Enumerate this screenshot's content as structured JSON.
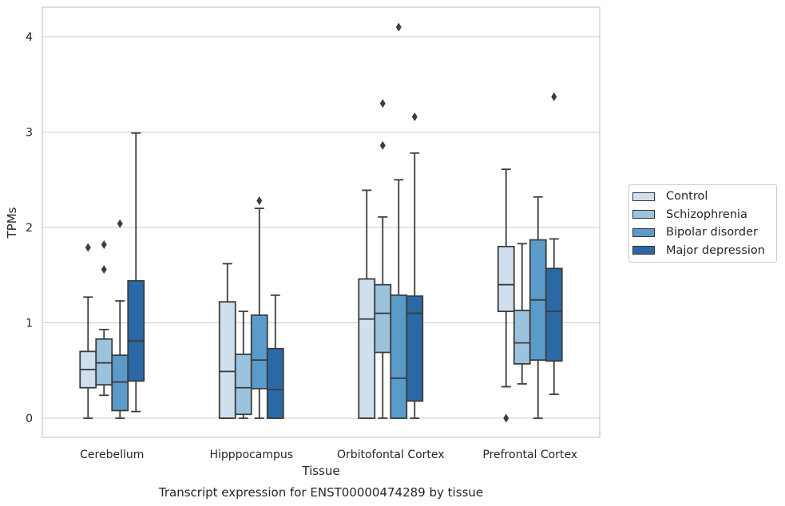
{
  "chart_data": {
    "type": "box",
    "title": "",
    "caption": "Transcript expression for ENST00000474289 by tissue",
    "xlabel": "Tissue",
    "ylabel": "TPMs",
    "ylim": [
      -0.2,
      4.3
    ],
    "yticks": [
      0,
      1,
      2,
      3,
      4
    ],
    "grid": "horizontal",
    "legend_placement": "right",
    "categories": [
      "Cerebellum",
      "Hipppocampus",
      "Orbitofontal Cortex",
      "Prefrontal Cortex"
    ],
    "series": [
      {
        "name": "Control",
        "color": "#d0dfee",
        "boxes": [
          {
            "whisker_low": 0.0,
            "q1": 0.32,
            "median": 0.51,
            "q3": 0.7,
            "whisker_high": 1.27,
            "outliers": [
              1.79
            ]
          },
          {
            "whisker_low": 0.0,
            "q1": 0.0,
            "median": 0.49,
            "q3": 1.22,
            "whisker_high": 1.62,
            "outliers": []
          },
          {
            "whisker_low": 0.0,
            "q1": 0.0,
            "median": 1.04,
            "q3": 1.46,
            "whisker_high": 2.39,
            "outliers": []
          },
          {
            "whisker_low": 0.33,
            "q1": 1.12,
            "median": 1.4,
            "q3": 1.8,
            "whisker_high": 2.61,
            "outliers": [
              0.0
            ]
          }
        ]
      },
      {
        "name": "Schizophrenia",
        "color": "#9cc3de",
        "boxes": [
          {
            "whisker_low": 0.24,
            "q1": 0.35,
            "median": 0.58,
            "q3": 0.83,
            "whisker_high": 0.93,
            "outliers": [
              1.56,
              1.82
            ]
          },
          {
            "whisker_low": 0.0,
            "q1": 0.04,
            "median": 0.32,
            "q3": 0.67,
            "whisker_high": 1.12,
            "outliers": []
          },
          {
            "whisker_low": 0.0,
            "q1": 0.69,
            "median": 1.1,
            "q3": 1.4,
            "whisker_high": 2.11,
            "outliers": [
              2.86,
              3.3
            ]
          },
          {
            "whisker_low": 0.36,
            "q1": 0.57,
            "median": 0.79,
            "q3": 1.13,
            "whisker_high": 1.83,
            "outliers": []
          }
        ]
      },
      {
        "name": "Bipolar disorder",
        "color": "#5b9bc9",
        "boxes": [
          {
            "whisker_low": 0.0,
            "q1": 0.08,
            "median": 0.38,
            "q3": 0.66,
            "whisker_high": 1.23,
            "outliers": [
              2.04
            ]
          },
          {
            "whisker_low": 0.0,
            "q1": 0.31,
            "median": 0.61,
            "q3": 1.08,
            "whisker_high": 2.2,
            "outliers": [
              2.28
            ]
          },
          {
            "whisker_low": 0.0,
            "q1": 0.0,
            "median": 0.42,
            "q3": 1.29,
            "whisker_high": 2.5,
            "outliers": [
              4.1
            ]
          },
          {
            "whisker_low": 0.0,
            "q1": 0.61,
            "median": 1.24,
            "q3": 1.87,
            "whisker_high": 2.32,
            "outliers": []
          }
        ]
      },
      {
        "name": "Major depression",
        "color": "#2b69a6",
        "boxes": [
          {
            "whisker_low": 0.07,
            "q1": 0.39,
            "median": 0.81,
            "q3": 1.44,
            "whisker_high": 2.99,
            "outliers": []
          },
          {
            "whisker_low": 0.0,
            "q1": 0.0,
            "median": 0.3,
            "q3": 0.73,
            "whisker_high": 1.29,
            "outliers": []
          },
          {
            "whisker_low": 0.0,
            "q1": 0.18,
            "median": 1.1,
            "q3": 1.28,
            "whisker_high": 2.78,
            "outliers": [
              3.16
            ]
          },
          {
            "whisker_low": 0.25,
            "q1": 0.6,
            "median": 1.12,
            "q3": 1.57,
            "whisker_high": 1.88,
            "outliers": [
              3.37
            ]
          }
        ]
      }
    ]
  }
}
